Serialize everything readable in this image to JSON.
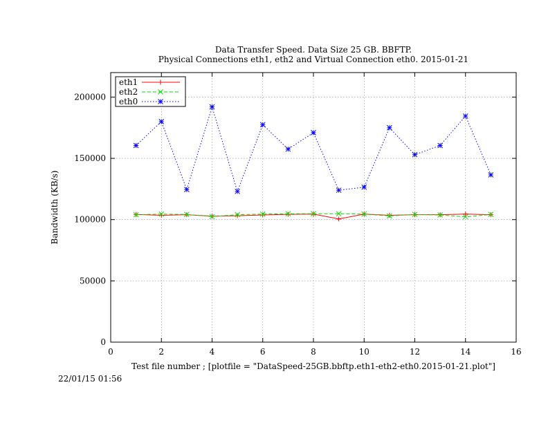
{
  "chart_data": {
    "type": "line",
    "title": "Data Transfer Speed. Data Size 25 GB. BBFTP.",
    "subtitle": "Physical Connections eth1, eth2 and Virtual Connection eth0. 2015-01-21",
    "xlabel": "Test file number ; [plotfile = \"DataSpeed-25GB.bbftp.eth1-eth2-eth0.2015-01-21.plot\"]",
    "ylabel": "Bandwidth (KB/s)",
    "xlim": [
      0,
      16
    ],
    "ylim": [
      0,
      220000
    ],
    "xticks": [
      0,
      2,
      4,
      6,
      8,
      10,
      12,
      14,
      16
    ],
    "yticks": [
      0,
      50000,
      100000,
      150000,
      200000
    ],
    "grid": true,
    "legend_position": "top-left",
    "x": [
      1,
      2,
      3,
      4,
      5,
      6,
      7,
      8,
      9,
      10,
      11,
      12,
      13,
      14,
      15
    ],
    "series": [
      {
        "name": "eth1",
        "color": "#ff0000",
        "marker": "plus",
        "dash": "solid",
        "values": [
          104200,
          103500,
          104000,
          102800,
          103200,
          103800,
          104300,
          104500,
          100500,
          104500,
          103500,
          104000,
          104000,
          104500,
          104000
        ]
      },
      {
        "name": "eth2",
        "color": "#00e000",
        "marker": "cross",
        "dash": "dashed",
        "values": [
          104000,
          104500,
          104200,
          102500,
          104000,
          104500,
          104800,
          104800,
          104800,
          104500,
          103000,
          104200,
          103800,
          102200,
          104200
        ]
      },
      {
        "name": "eth0",
        "color": "#0000ff",
        "marker": "star",
        "dash": "dotted",
        "values": [
          160500,
          180000,
          124500,
          192000,
          123000,
          177500,
          157500,
          171000,
          124000,
          126500,
          175000,
          153000,
          160500,
          184500,
          136500
        ]
      }
    ]
  },
  "timestamp": "22/01/15 01:56"
}
